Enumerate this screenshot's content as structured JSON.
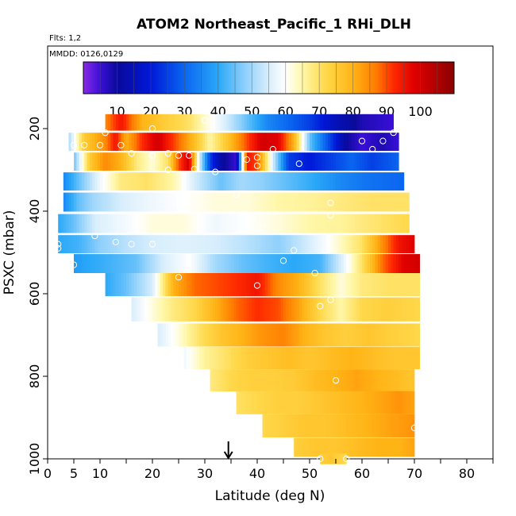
{
  "chart_data": {
    "type": "heatmap",
    "title": "ATOM2 Northeast_Pacific_1 RHi_DLH",
    "flights_note": "Flts: 1,2",
    "date_note": "MMDD: 0126,0129",
    "xlabel": "Latitude (deg N)",
    "ylabel": "PSXC (mbar)",
    "xlim": [
      0,
      85
    ],
    "ylim": [
      1000,
      0
    ],
    "x_ticks": [
      0,
      5,
      10,
      20,
      30,
      40,
      50,
      60,
      70,
      80
    ],
    "x_minor_ticks": [
      15,
      25,
      35,
      45,
      55,
      65,
      75,
      85
    ],
    "y_ticks": [
      200,
      400,
      600,
      800,
      1000
    ],
    "colorbar": {
      "range": [
        0,
        110
      ],
      "tick_values": [
        10,
        20,
        30,
        40,
        50,
        60,
        70,
        80,
        90,
        100
      ],
      "colors": [
        {
          "v": 0,
          "c": "#8a2be2"
        },
        {
          "v": 5,
          "c": "#3a0fd8"
        },
        {
          "v": 10,
          "c": "#0a0a9a"
        },
        {
          "v": 20,
          "c": "#0018d8"
        },
        {
          "v": 30,
          "c": "#0a66f0"
        },
        {
          "v": 40,
          "c": "#2aa8f8"
        },
        {
          "v": 48,
          "c": "#8fd0fb"
        },
        {
          "v": 55,
          "c": "#d8eefc"
        },
        {
          "v": 60,
          "c": "#ffffff"
        },
        {
          "v": 65,
          "c": "#fff7a8"
        },
        {
          "v": 72,
          "c": "#ffd84a"
        },
        {
          "v": 80,
          "c": "#ffb416"
        },
        {
          "v": 87,
          "c": "#ff7a00"
        },
        {
          "v": 92,
          "c": "#ff2a00"
        },
        {
          "v": 98,
          "c": "#e00000"
        },
        {
          "v": 105,
          "c": "#b00000"
        },
        {
          "v": 110,
          "c": "#8a0000"
        }
      ]
    },
    "arrow_latitude": 34.5,
    "bands": [
      {
        "p": 185,
        "h": 40,
        "lat": [
          11,
          66
        ],
        "v": [
          [
            11,
            85
          ],
          [
            14,
            95
          ],
          [
            18,
            80
          ],
          [
            22,
            75
          ],
          [
            27,
            70
          ],
          [
            30,
            63
          ],
          [
            34,
            55
          ],
          [
            38,
            45
          ],
          [
            42,
            35
          ],
          [
            46,
            30
          ],
          [
            50,
            25
          ],
          [
            55,
            15
          ],
          [
            60,
            8
          ],
          [
            66,
            5
          ]
        ]
      },
      {
        "p": 232,
        "h": 44,
        "lat": [
          4,
          67
        ],
        "v": [
          [
            4,
            50
          ],
          [
            7,
            75
          ],
          [
            11,
            85
          ],
          [
            13,
            95
          ],
          [
            15,
            80
          ],
          [
            18,
            92
          ],
          [
            21,
            100
          ],
          [
            25,
            88
          ],
          [
            28,
            78
          ],
          [
            31,
            65
          ],
          [
            34,
            75
          ],
          [
            38,
            90
          ],
          [
            41,
            100
          ],
          [
            44,
            98
          ],
          [
            47,
            80
          ],
          [
            50,
            45
          ],
          [
            54,
            25
          ],
          [
            57,
            10
          ],
          [
            60,
            5
          ],
          [
            64,
            8
          ],
          [
            67,
            5
          ]
        ]
      },
      {
        "p": 280,
        "h": 44,
        "lat": [
          5,
          67
        ],
        "v": [
          [
            5,
            45
          ],
          [
            8,
            75
          ],
          [
            11,
            85
          ],
          [
            14,
            80
          ],
          [
            17,
            68
          ],
          [
            20,
            62
          ],
          [
            23,
            70
          ],
          [
            25,
            90
          ],
          [
            27,
            100
          ],
          [
            29,
            55
          ],
          [
            31,
            25
          ],
          [
            33,
            12
          ],
          [
            36,
            5
          ],
          [
            38,
            95
          ],
          [
            40,
            90
          ],
          [
            43,
            55
          ],
          [
            46,
            25
          ],
          [
            50,
            20
          ],
          [
            54,
            25
          ],
          [
            58,
            30
          ],
          [
            62,
            25
          ],
          [
            67,
            30
          ]
        ]
      },
      {
        "p": 328,
        "h": 44,
        "lat": [
          3,
          68
        ],
        "v": [
          [
            3,
            35
          ],
          [
            6,
            45
          ],
          [
            10,
            58
          ],
          [
            14,
            68
          ],
          [
            19,
            70
          ],
          [
            24,
            65
          ],
          [
            28,
            55
          ],
          [
            33,
            45
          ],
          [
            37,
            50
          ],
          [
            41,
            48
          ],
          [
            46,
            44
          ],
          [
            51,
            40
          ],
          [
            56,
            35
          ],
          [
            61,
            32
          ],
          [
            68,
            30
          ]
        ]
      },
      {
        "p": 378,
        "h": 46,
        "lat": [
          3,
          69
        ],
        "v": [
          [
            3,
            35
          ],
          [
            6,
            45
          ],
          [
            9,
            50
          ],
          [
            14,
            55
          ],
          [
            20,
            58
          ],
          [
            26,
            60
          ],
          [
            32,
            62
          ],
          [
            38,
            62
          ],
          [
            44,
            65
          ],
          [
            50,
            66
          ],
          [
            56,
            68
          ],
          [
            62,
            70
          ],
          [
            69,
            70
          ]
        ]
      },
      {
        "p": 430,
        "h": 46,
        "lat": [
          2,
          69
        ],
        "v": [
          [
            2,
            40
          ],
          [
            5,
            45
          ],
          [
            9,
            55
          ],
          [
            14,
            58
          ],
          [
            20,
            62
          ],
          [
            26,
            62
          ],
          [
            32,
            58
          ],
          [
            38,
            60
          ],
          [
            44,
            62
          ],
          [
            50,
            65
          ],
          [
            56,
            66
          ],
          [
            60,
            68
          ],
          [
            64,
            70
          ],
          [
            69,
            72
          ]
        ]
      },
      {
        "p": 480,
        "h": 44,
        "lat": [
          2,
          70
        ],
        "v": [
          [
            2,
            40
          ],
          [
            6,
            42
          ],
          [
            10,
            48
          ],
          [
            15,
            52
          ],
          [
            20,
            55
          ],
          [
            26,
            56
          ],
          [
            32,
            55
          ],
          [
            38,
            52
          ],
          [
            44,
            48
          ],
          [
            50,
            55
          ],
          [
            55,
            62
          ],
          [
            60,
            70
          ],
          [
            64,
            85
          ],
          [
            67,
            95
          ],
          [
            70,
            98
          ]
        ]
      },
      {
        "p": 527,
        "h": 46,
        "lat": [
          5,
          71
        ],
        "v": [
          [
            5,
            38
          ],
          [
            8,
            40
          ],
          [
            12,
            42
          ],
          [
            17,
            45
          ],
          [
            22,
            55
          ],
          [
            27,
            60
          ],
          [
            32,
            50
          ],
          [
            37,
            45
          ],
          [
            42,
            42
          ],
          [
            47,
            40
          ],
          [
            52,
            42
          ],
          [
            56,
            55
          ],
          [
            60,
            70
          ],
          [
            64,
            88
          ],
          [
            68,
            98
          ],
          [
            71,
            100
          ]
        ]
      },
      {
        "p": 578,
        "h": 56,
        "lat": [
          11,
          71
        ],
        "v": [
          [
            11,
            40
          ],
          [
            15,
            45
          ],
          [
            20,
            55
          ],
          [
            24,
            80
          ],
          [
            28,
            88
          ],
          [
            32,
            90
          ],
          [
            36,
            92
          ],
          [
            40,
            95
          ],
          [
            44,
            85
          ],
          [
            48,
            80
          ],
          [
            52,
            70
          ],
          [
            56,
            62
          ],
          [
            60,
            68
          ],
          [
            65,
            70
          ],
          [
            71,
            70
          ]
        ]
      },
      {
        "p": 638,
        "h": 58,
        "lat": [
          16,
          71
        ],
        "v": [
          [
            16,
            55
          ],
          [
            20,
            62
          ],
          [
            24,
            68
          ],
          [
            28,
            72
          ],
          [
            32,
            80
          ],
          [
            36,
            88
          ],
          [
            40,
            92
          ],
          [
            44,
            90
          ],
          [
            48,
            82
          ],
          [
            52,
            72
          ],
          [
            56,
            65
          ],
          [
            60,
            72
          ],
          [
            65,
            74
          ],
          [
            71,
            72
          ]
        ]
      },
      {
        "p": 700,
        "h": 56,
        "lat": [
          21,
          71
        ],
        "v": [
          [
            21,
            55
          ],
          [
            25,
            62
          ],
          [
            29,
            70
          ],
          [
            33,
            76
          ],
          [
            37,
            80
          ],
          [
            41,
            84
          ],
          [
            45,
            86
          ],
          [
            49,
            80
          ],
          [
            53,
            76
          ],
          [
            57,
            74
          ],
          [
            61,
            76
          ],
          [
            66,
            74
          ],
          [
            71,
            72
          ]
        ]
      },
      {
        "p": 756,
        "h": 54,
        "lat": [
          26,
          71
        ],
        "v": [
          [
            26,
            58
          ],
          [
            30,
            66
          ],
          [
            34,
            70
          ],
          [
            38,
            74
          ],
          [
            42,
            76
          ],
          [
            46,
            78
          ],
          [
            50,
            76
          ],
          [
            54,
            78
          ],
          [
            58,
            80
          ],
          [
            62,
            78
          ],
          [
            66,
            76
          ],
          [
            71,
            76
          ]
        ]
      },
      {
        "p": 810,
        "h": 54,
        "lat": [
          31,
          70
        ],
        "v": [
          [
            31,
            68
          ],
          [
            35,
            72
          ],
          [
            39,
            74
          ],
          [
            43,
            74
          ],
          [
            47,
            75
          ],
          [
            51,
            78
          ],
          [
            55,
            80
          ],
          [
            59,
            82
          ],
          [
            63,
            80
          ],
          [
            67,
            78
          ],
          [
            70,
            76
          ]
        ]
      },
      {
        "p": 864,
        "h": 56,
        "lat": [
          36,
          70
        ],
        "v": [
          [
            36,
            70
          ],
          [
            40,
            72
          ],
          [
            44,
            74
          ],
          [
            48,
            74
          ],
          [
            52,
            76
          ],
          [
            56,
            78
          ],
          [
            60,
            80
          ],
          [
            64,
            82
          ],
          [
            67,
            84
          ],
          [
            70,
            82
          ]
        ]
      },
      {
        "p": 920,
        "h": 56,
        "lat": [
          41,
          70
        ],
        "v": [
          [
            41,
            72
          ],
          [
            45,
            74
          ],
          [
            49,
            76
          ],
          [
            53,
            76
          ],
          [
            57,
            78
          ],
          [
            61,
            80
          ],
          [
            65,
            82
          ],
          [
            70,
            84
          ]
        ]
      },
      {
        "p": 972,
        "h": 46,
        "lat": [
          47,
          70
        ],
        "v": [
          [
            47,
            74
          ],
          [
            51,
            76
          ],
          [
            55,
            76
          ],
          [
            59,
            78
          ],
          [
            63,
            80
          ],
          [
            67,
            80
          ],
          [
            70,
            82
          ]
        ]
      },
      {
        "p": 1000,
        "h": 26,
        "lat": [
          52,
          57
        ],
        "v": [
          [
            52,
            74
          ],
          [
            54,
            76
          ],
          [
            57,
            72
          ]
        ]
      }
    ],
    "points": [
      [
        5,
        240
      ],
      [
        7,
        240
      ],
      [
        10,
        240
      ],
      [
        11,
        210
      ],
      [
        14,
        240
      ],
      [
        20,
        200
      ],
      [
        30,
        180
      ],
      [
        60,
        230
      ],
      [
        62,
        250
      ],
      [
        64,
        230
      ],
      [
        66,
        210
      ],
      [
        16,
        260
      ],
      [
        20,
        265
      ],
      [
        23,
        260
      ],
      [
        25,
        265
      ],
      [
        27,
        265
      ],
      [
        23,
        300
      ],
      [
        28,
        298
      ],
      [
        32,
        305
      ],
      [
        36,
        360
      ],
      [
        38,
        275
      ],
      [
        40,
        270
      ],
      [
        43,
        250
      ],
      [
        40,
        290
      ],
      [
        48,
        285
      ],
      [
        39,
        410
      ],
      [
        41,
        440
      ],
      [
        54,
        380
      ],
      [
        54,
        410
      ],
      [
        2,
        480
      ],
      [
        2,
        490
      ],
      [
        9,
        460
      ],
      [
        13,
        475
      ],
      [
        16,
        480
      ],
      [
        20,
        480
      ],
      [
        45,
        520
      ],
      [
        47,
        495
      ],
      [
        5,
        530
      ],
      [
        25,
        560
      ],
      [
        51,
        550
      ],
      [
        40,
        580
      ],
      [
        52,
        630
      ],
      [
        54,
        615
      ],
      [
        55,
        810
      ],
      [
        70,
        925
      ],
      [
        52,
        1000
      ],
      [
        57,
        1000
      ]
    ]
  }
}
